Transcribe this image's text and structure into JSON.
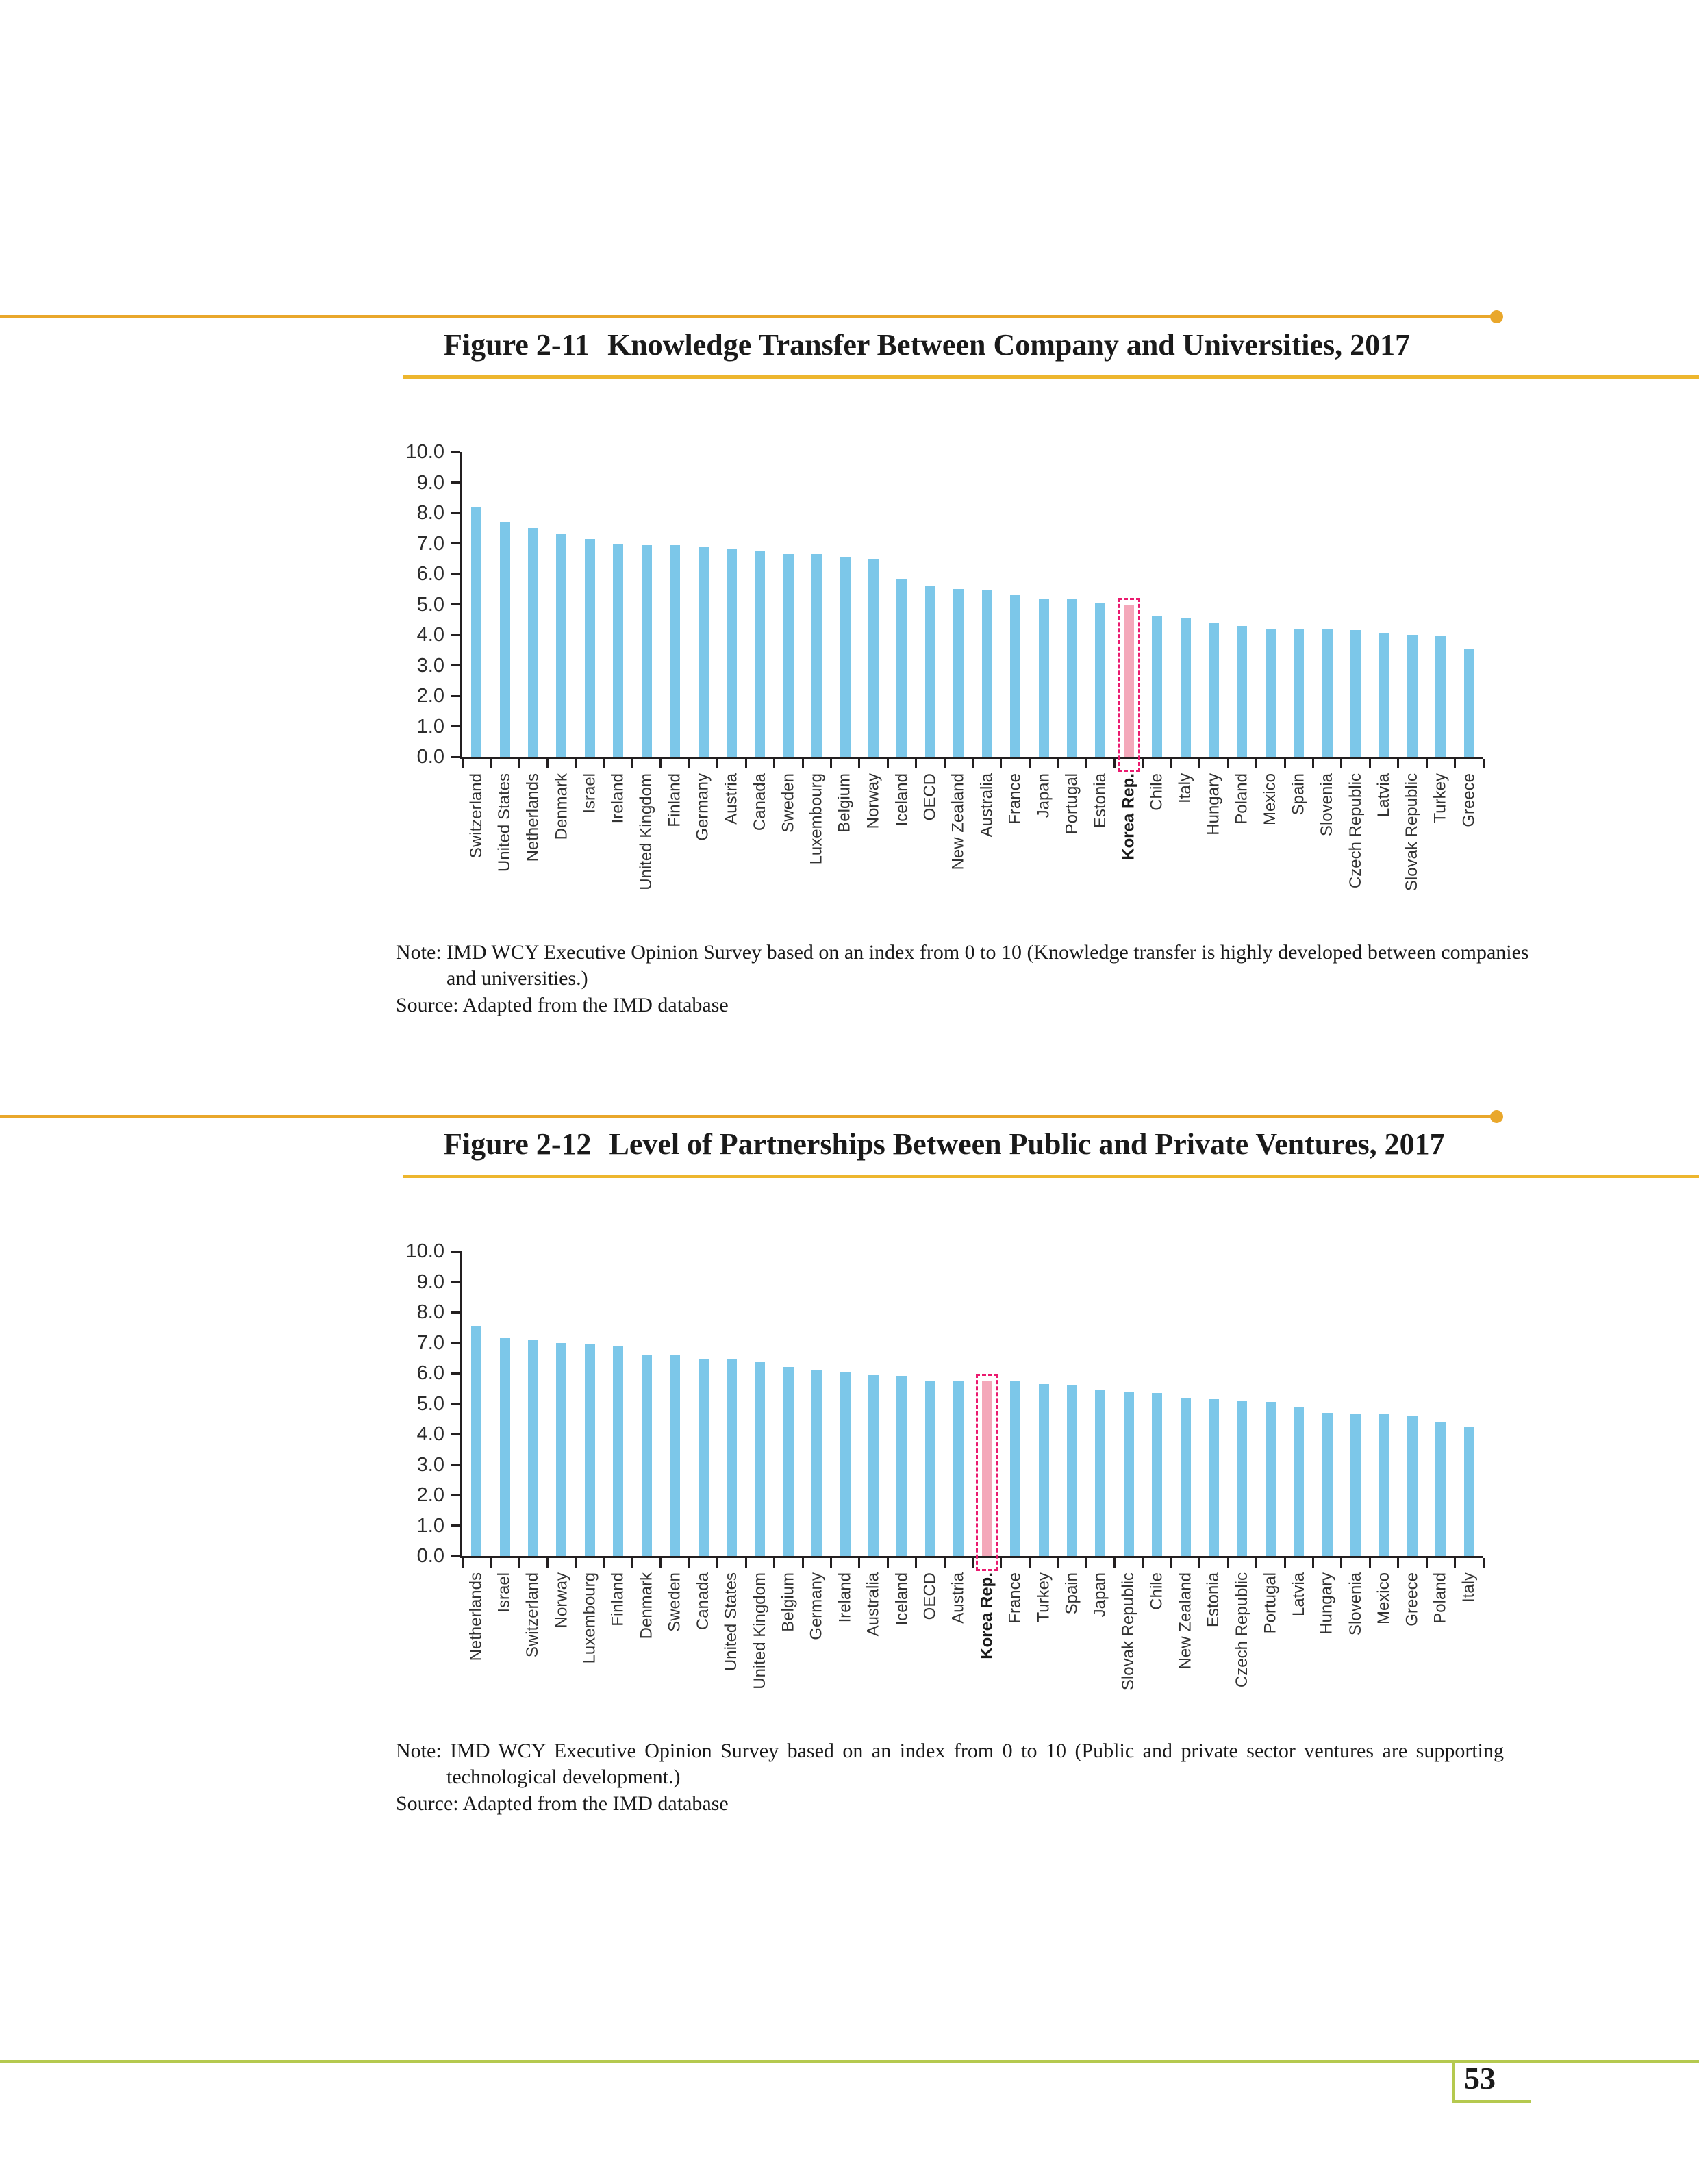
{
  "page": {
    "number": "53"
  },
  "colors": {
    "bar": "#7CC7E9",
    "highlight_bar": "#F4A8BA",
    "highlight_box": "#EB1A6F",
    "accent_line": "#E9A72B",
    "footer_line": "#B5C94F",
    "axis": "#231f20"
  },
  "figures": [
    {
      "number": "Figure 2-11",
      "title": "Knowledge Transfer Between Company and Universities, 2017",
      "note": {
        "line1": "Note: IMD WCY Executive Opinion Survey based on an index from 0 to 10 (Knowledge transfer is highly developed between companies",
        "line2": "and universities.)",
        "source": "Source: Adapted from the IMD database"
      }
    },
    {
      "number": "Figure 2-12",
      "title": "Level of Partnerships Between Public and Private Ventures, 2017",
      "note": {
        "line1": "Note: IMD WCY Executive Opinion Survey based on an index from 0 to 10 (Public and private sector ventures are supporting",
        "line2": "technological development.)",
        "source": "Source: Adapted from the IMD database"
      }
    }
  ],
  "chart_data": [
    {
      "type": "bar",
      "title": "Figure 2-11 Knowledge Transfer Between Company and Universities, 2017",
      "categories": [
        "Switzerland",
        "United States",
        "Netherlands",
        "Denmark",
        "Israel",
        "Ireland",
        "United Kingdom",
        "Finland",
        "Germany",
        "Austria",
        "Canada",
        "Sweden",
        "Luxembourg",
        "Belgium",
        "Norway",
        "Iceland",
        "OECD",
        "New Zealand",
        "Australia",
        "France",
        "Japan",
        "Portugal",
        "Estonia",
        "Korea Rep.",
        "Chile",
        "Italy",
        "Hungary",
        "Poland",
        "Mexico",
        "Spain",
        "Slovenia",
        "Czech Republic",
        "Latvia",
        "Slovak Republic",
        "Turkey",
        "Greece"
      ],
      "values": [
        8.2,
        7.7,
        7.5,
        7.3,
        7.15,
        7.0,
        6.95,
        6.95,
        6.9,
        6.8,
        6.75,
        6.65,
        6.65,
        6.55,
        6.5,
        5.85,
        5.6,
        5.5,
        5.45,
        5.3,
        5.2,
        5.2,
        5.05,
        5.0,
        4.6,
        4.55,
        4.4,
        4.3,
        4.2,
        4.2,
        4.2,
        4.15,
        4.05,
        4.0,
        3.95,
        3.55
      ],
      "highlight_category": "Korea Rep.",
      "xlabel": "",
      "ylabel": "",
      "ylim": [
        0,
        10
      ],
      "ytick_labels": [
        "0.0",
        "1.0",
        "2.0",
        "3.0",
        "4.0",
        "5.0",
        "6.0",
        "7.0",
        "8.0",
        "9.0",
        "10.0"
      ],
      "grid": false,
      "legend": "none"
    },
    {
      "type": "bar",
      "title": "Figure 2-12 Level of Partnerships Between Public and Private Ventures, 2017",
      "categories": [
        "Netherlands",
        "Israel",
        "Switzerland",
        "Norway",
        "Luxembourg",
        "Finland",
        "Denmark",
        "Sweden",
        "Canada",
        "United States",
        "United Kingdom",
        "Belgium",
        "Germany",
        "Ireland",
        "Australia",
        "Iceland",
        "OECD",
        "Austria",
        "Korea Rep.",
        "France",
        "Turkey",
        "Spain",
        "Japan",
        "Slovak Republic",
        "Chile",
        "New Zealand",
        "Estonia",
        "Czech Republic",
        "Portugal",
        "Latvia",
        "Hungary",
        "Slovenia",
        "Mexico",
        "Greece",
        "Poland",
        "Italy"
      ],
      "values": [
        7.55,
        7.15,
        7.1,
        7.0,
        6.95,
        6.9,
        6.6,
        6.6,
        6.45,
        6.45,
        6.35,
        6.2,
        6.1,
        6.05,
        5.95,
        5.9,
        5.75,
        5.75,
        5.75,
        5.75,
        5.65,
        5.6,
        5.45,
        5.4,
        5.35,
        5.2,
        5.15,
        5.1,
        5.05,
        4.9,
        4.7,
        4.65,
        4.65,
        4.6,
        4.4,
        4.25
      ],
      "highlight_category": "Korea Rep.",
      "xlabel": "",
      "ylabel": "",
      "ylim": [
        0,
        10
      ],
      "ytick_labels": [
        "0.0",
        "1.0",
        "2.0",
        "3.0",
        "4.0",
        "5.0",
        "6.0",
        "7.0",
        "8.0",
        "9.0",
        "10.0"
      ],
      "grid": false,
      "legend": "none"
    }
  ]
}
